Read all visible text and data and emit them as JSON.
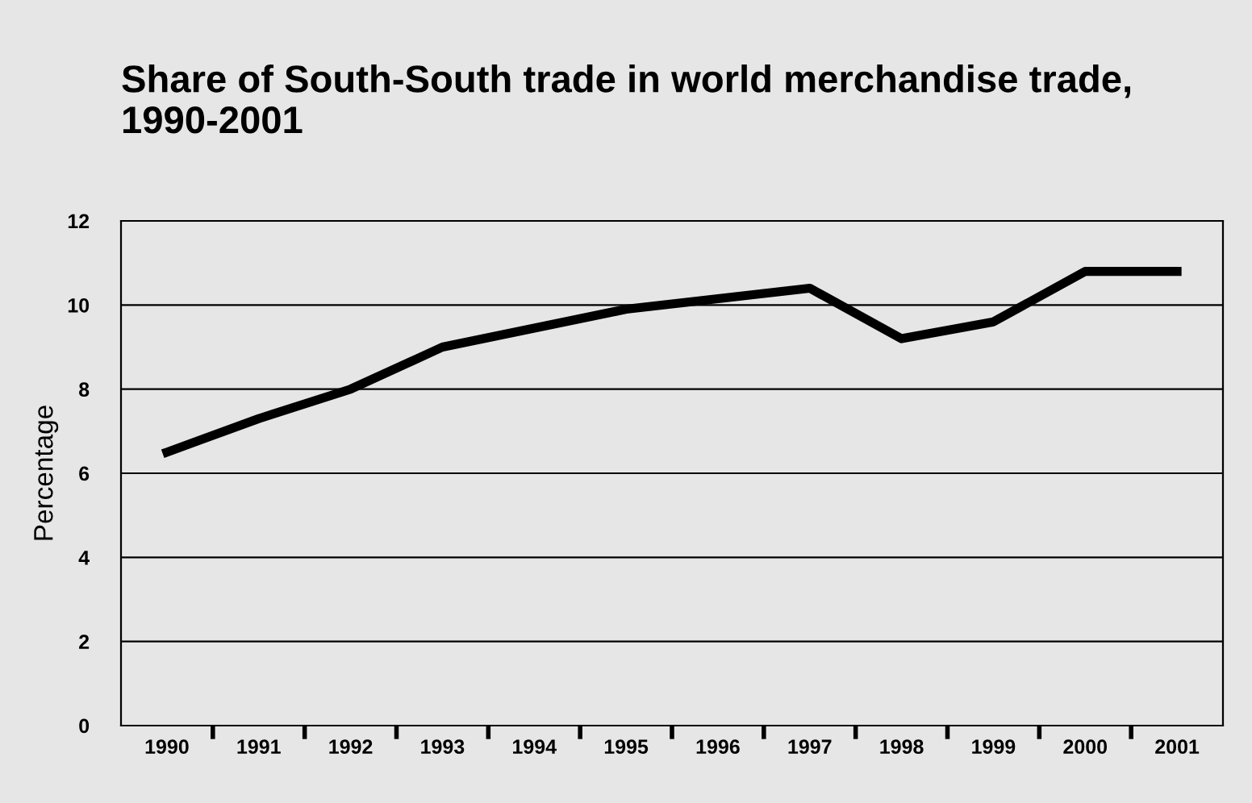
{
  "chart_data": {
    "type": "line",
    "title": "Share of South-South trade in world merchandise trade, 1990-2001",
    "ylabel": "Percentage",
    "categories": [
      "1990",
      "1991",
      "1992",
      "1993",
      "1994",
      "1995",
      "1996",
      "1997",
      "1998",
      "1999",
      "2000",
      "2001"
    ],
    "series": [
      {
        "color": "#000000",
        "values": [
          6.5,
          7.3,
          8.0,
          9.0,
          9.45,
          9.9,
          10.15,
          10.4,
          9.2,
          9.6,
          10.8,
          10.8
        ]
      }
    ],
    "ylim": [
      0,
      12
    ],
    "yticks": [
      0,
      2,
      4,
      6,
      8,
      10,
      12
    ],
    "grid": "y",
    "legend": false,
    "marker": "none",
    "line_style": "solid"
  }
}
